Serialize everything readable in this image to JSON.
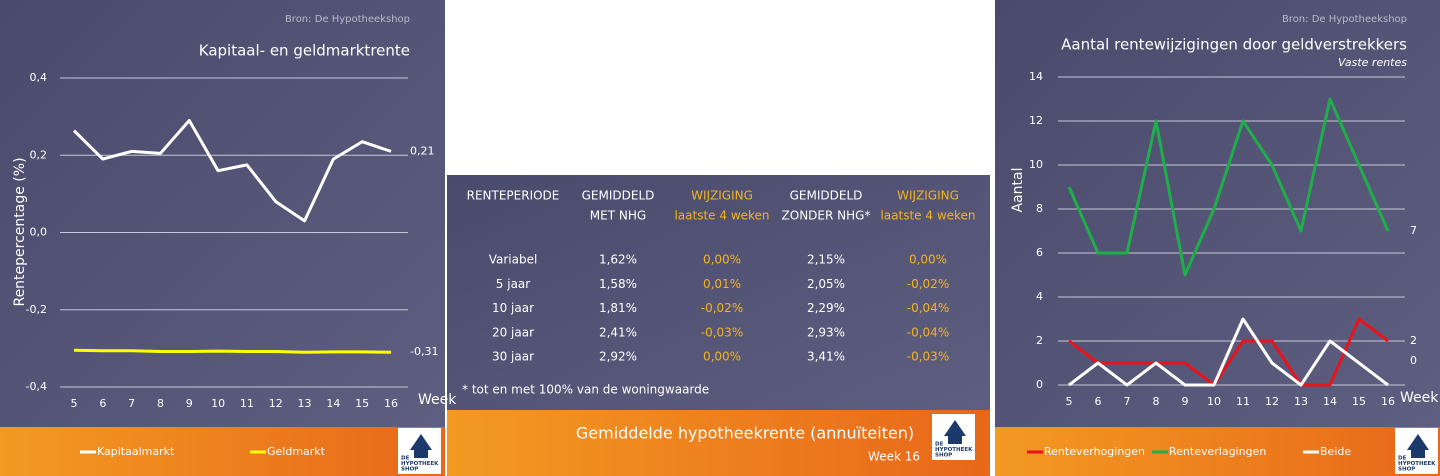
{
  "chart_data": [
    {
      "type": "line",
      "source": "Bron: De Hypotheekshop",
      "title": "Kapitaal- en geldmarktrente",
      "y_label": "Rentepercentage (%)",
      "x_label": "Week",
      "x": [
        5,
        6,
        7,
        8,
        9,
        10,
        11,
        12,
        13,
        14,
        15,
        16
      ],
      "xlim": [
        5,
        16
      ],
      "ylim": [
        -0.4,
        0.4
      ],
      "yticks": [
        {
          "value": -0.4,
          "label": "-0,4"
        },
        {
          "value": -0.2,
          "label": "-0,2"
        },
        {
          "value": 0,
          "label": "0,0"
        },
        {
          "value": 0.2,
          "label": "0,2"
        },
        {
          "value": 0.4,
          "label": "0,4"
        }
      ],
      "grid": true,
      "legend": "bottom",
      "end_labels": true,
      "series": [
        {
          "name": "Kapitaalmarkt",
          "color": "#ffffff",
          "values": [
            0.264,
            0.19,
            0.21,
            0.205,
            0.29,
            0.16,
            0.175,
            0.08,
            0.03,
            0.19,
            0.235,
            0.21
          ],
          "value_labels": [
            null,
            null,
            null,
            null,
            null,
            null,
            null,
            null,
            null,
            null,
            null,
            "0,21"
          ]
        },
        {
          "name": "Geldmarkt",
          "color": "#ffff00",
          "values": [
            -0.305,
            -0.306,
            -0.306,
            -0.308,
            -0.308,
            -0.307,
            -0.308,
            -0.308,
            -0.31,
            -0.309,
            -0.309,
            -0.31
          ],
          "value_labels": [
            null,
            null,
            null,
            null,
            null,
            null,
            null,
            null,
            null,
            null,
            null,
            "-0,31"
          ]
        }
      ]
    },
    {
      "type": "line",
      "source": "Bron: De Hypotheekshop",
      "title": "Aantal rentewijzigingen door geldverstrekkers",
      "subtitle": "Vaste rentes",
      "y_label": "Aantal",
      "x_label": "Week",
      "x": [
        5,
        6,
        7,
        8,
        9,
        10,
        11,
        12,
        13,
        14,
        15,
        16
      ],
      "xlim": [
        5,
        16
      ],
      "ylim": [
        0,
        14
      ],
      "yticks": [
        0,
        2,
        4,
        6,
        8,
        10,
        12,
        14
      ],
      "grid": true,
      "legend": "bottom",
      "end_labels": true,
      "series": [
        {
          "name": "Renteverhogingen",
          "color": "#e8141c",
          "values": [
            2,
            1,
            1,
            1,
            1,
            0,
            2,
            2,
            0,
            0,
            3,
            2
          ]
        },
        {
          "name": "Renteverlagingen",
          "color": "#1fae4a",
          "values": [
            9,
            6,
            6,
            12,
            5,
            8,
            12,
            10,
            7,
            13,
            10,
            7
          ]
        },
        {
          "name": "Beide",
          "color": "#ffffff",
          "values": [
            0,
            1,
            0,
            1,
            0,
            0,
            3,
            1,
            0,
            2,
            1,
            0
          ]
        }
      ]
    }
  ],
  "table": {
    "header": [
      [
        "RENTEPERIODE"
      ],
      [
        "GEMIDDELD",
        "MET NHG"
      ],
      [
        "WIJZIGING",
        "laatste 4 weken"
      ],
      [
        "GEMIDDELD",
        "ZONDER NHG*"
      ],
      [
        "WIJZIGING",
        "laatste 4 weken"
      ]
    ],
    "rows": [
      [
        "Variabel",
        "1,62%",
        "0,00%",
        "2,15%",
        "0,00%"
      ],
      [
        "5 jaar",
        "1,58%",
        "0,01%",
        "2,05%",
        "-0,02%"
      ],
      [
        "10 jaar",
        "1,81%",
        "-0,02%",
        "2,29%",
        "-0,04%"
      ],
      [
        "20 jaar",
        "2,41%",
        "-0,03%",
        "2,93%",
        "-0,04%"
      ],
      [
        "30 jaar",
        "2,92%",
        "0,00%",
        "3,41%",
        "-0,03%"
      ]
    ],
    "footnote": "* tot en met 100% van de woningwaarde",
    "title": "Gemiddelde hypotheekrente (annuïteiten)",
    "week": "Week 16"
  },
  "logo": [
    "DE",
    "HYPOTHEEK",
    "SHOP"
  ]
}
